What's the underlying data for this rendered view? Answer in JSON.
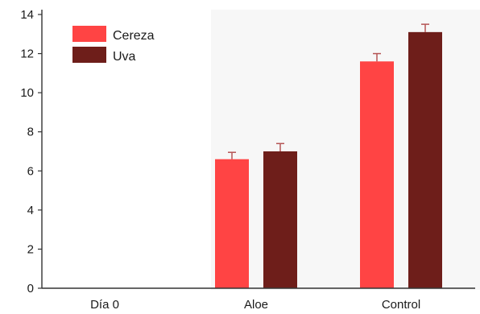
{
  "chart_data": {
    "type": "bar",
    "categories": [
      "Día 0",
      "Aloe",
      "Control"
    ],
    "series": [
      {
        "name": "Cereza",
        "values": [
          0,
          6.6,
          11.6
        ],
        "errors": [
          0,
          0.35,
          0.4
        ]
      },
      {
        "name": "Uva",
        "values": [
          0,
          7.0,
          13.1
        ],
        "errors": [
          0,
          0.4,
          0.4
        ]
      }
    ],
    "ylim": [
      0,
      14
    ],
    "yticks": [
      "0",
      "2",
      "4",
      "6",
      "8",
      "10",
      "12",
      "14"
    ],
    "title": "",
    "xlabel": "",
    "ylabel": "",
    "legend_position": "top-left",
    "grid": false,
    "colors": {
      "Cereza": "#ff4444",
      "Uva": "#6e1e1a",
      "errorbar": "#b55555",
      "axis": "#333333"
    }
  }
}
